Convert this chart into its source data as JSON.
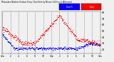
{
  "temp_color": "#ff0000",
  "dew_color": "#0000ff",
  "background_color": "#f0f0f0",
  "grid_color": "#888888",
  "ylim": [
    14,
    82
  ],
  "xlim": [
    0,
    1440
  ],
  "yticks": [
    20,
    30,
    40,
    50,
    60,
    70,
    80
  ],
  "xticks": [
    0,
    120,
    240,
    360,
    480,
    600,
    720,
    840,
    960,
    1080,
    1200,
    1320,
    1440
  ],
  "xtick_labels": [
    "12a",
    "2",
    "4",
    "6",
    "8",
    "10",
    "12p",
    "2",
    "4",
    "6",
    "8",
    "10",
    "12a"
  ],
  "temp_peak_time": 840,
  "temp_peak_val": 75,
  "temp_start_val": 55,
  "temp_min_val": 30,
  "dew_start_val": 45,
  "dew_min_val": 22
}
